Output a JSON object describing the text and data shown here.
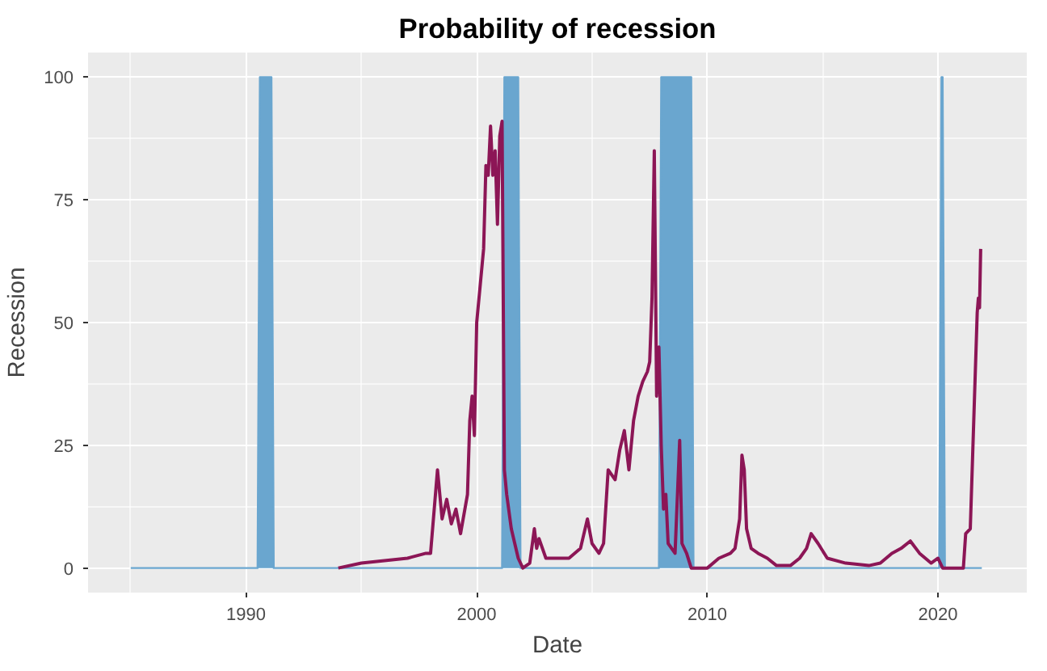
{
  "chart_data": {
    "type": "line",
    "title": "Probability of recession",
    "xlabel": "Date",
    "ylabel": "Recession",
    "xlim": [
      1983.15,
      2023.85
    ],
    "ylim": [
      -5,
      105
    ],
    "xticks": [
      1990,
      2000,
      2010,
      2020
    ],
    "yticks": [
      0,
      25,
      50,
      75,
      100
    ],
    "grid": true,
    "series": [
      {
        "type": "area",
        "color": "#6aa6cf",
        "x": [
          1985,
          1990.5,
          1990.55,
          1990.6,
          1991.1,
          1991.15,
          1991.2,
          2001.1,
          2001.15,
          2001.2,
          2001.8,
          2001.85,
          2001.9,
          2007.9,
          2007.95,
          2008.0,
          2009.3,
          2009.35,
          2009.4,
          2020.05,
          2020.1,
          2020.15,
          2020.2,
          2020.25,
          2020.3,
          2021.9
        ],
        "values": [
          0,
          0,
          50,
          100,
          100,
          50,
          0,
          0,
          50,
          100,
          100,
          50,
          0,
          0,
          50,
          100,
          100,
          50,
          0,
          0,
          50,
          100,
          100,
          50,
          0,
          0
        ]
      },
      {
        "color": "#8c1656",
        "x": [
          1994.0,
          1995,
          1996,
          1997,
          1997.8,
          1998,
          1998.3,
          1998.5,
          1998.7,
          1998.9,
          1999.1,
          1999.3,
          1999.6,
          1999.7,
          1999.8,
          1999.9,
          2000.0,
          2000.3,
          2000.4,
          2000.5,
          2000.6,
          2000.7,
          2000.8,
          2000.9,
          2001.0,
          2001.1,
          2001.2,
          2001.3,
          2001.5,
          2001.8,
          2002.0,
          2002.3,
          2002.5,
          2002.6,
          2002.7,
          2003,
          2003.5,
          2004,
          2004.5,
          2004.8,
          2005,
          2005.3,
          2005.5,
          2005.7,
          2006,
          2006.2,
          2006.4,
          2006.6,
          2006.8,
          2007,
          2007.2,
          2007.4,
          2007.5,
          2007.6,
          2007.7,
          2007.8,
          2007.9,
          2008.0,
          2008.1,
          2008.2,
          2008.3,
          2008.6,
          2008.8,
          2008.9,
          2009.1,
          2009.3,
          2010,
          2010.5,
          2011,
          2011.2,
          2011.4,
          2011.5,
          2011.6,
          2011.7,
          2011.9,
          2012.2,
          2012.6,
          2013,
          2013.6,
          2014,
          2014.3,
          2014.5,
          2014.8,
          2015.2,
          2016,
          2017,
          2017.5,
          2018,
          2018.4,
          2018.8,
          2019.2,
          2019.7,
          2020.0,
          2020.2,
          2021.1,
          2021.2,
          2021.4,
          2021.55,
          2021.7,
          2021.75,
          2021.8,
          2021.85
        ],
        "values": [
          0,
          1,
          1.5,
          2,
          3,
          3,
          20,
          10,
          14,
          9,
          12,
          7,
          15,
          30,
          35,
          27,
          50,
          65,
          82,
          80,
          90,
          80,
          85,
          70,
          88,
          91,
          20,
          15,
          8,
          2,
          0,
          1,
          8,
          4,
          6,
          2,
          2,
          2,
          4,
          10,
          5,
          3,
          5,
          20,
          18,
          24,
          28,
          20,
          30,
          35,
          38,
          40,
          42,
          55,
          85,
          35,
          45,
          25,
          12,
          15,
          5,
          3,
          26,
          5,
          3,
          0,
          0,
          2,
          3,
          4,
          10,
          23,
          20,
          8,
          4,
          3,
          2,
          0.5,
          0.5,
          2,
          4,
          7,
          5,
          2,
          1,
          0.5,
          1,
          3,
          4,
          5.5,
          3,
          1,
          2,
          0,
          0,
          7,
          8,
          30,
          52,
          55,
          53,
          65
        ]
      }
    ]
  }
}
